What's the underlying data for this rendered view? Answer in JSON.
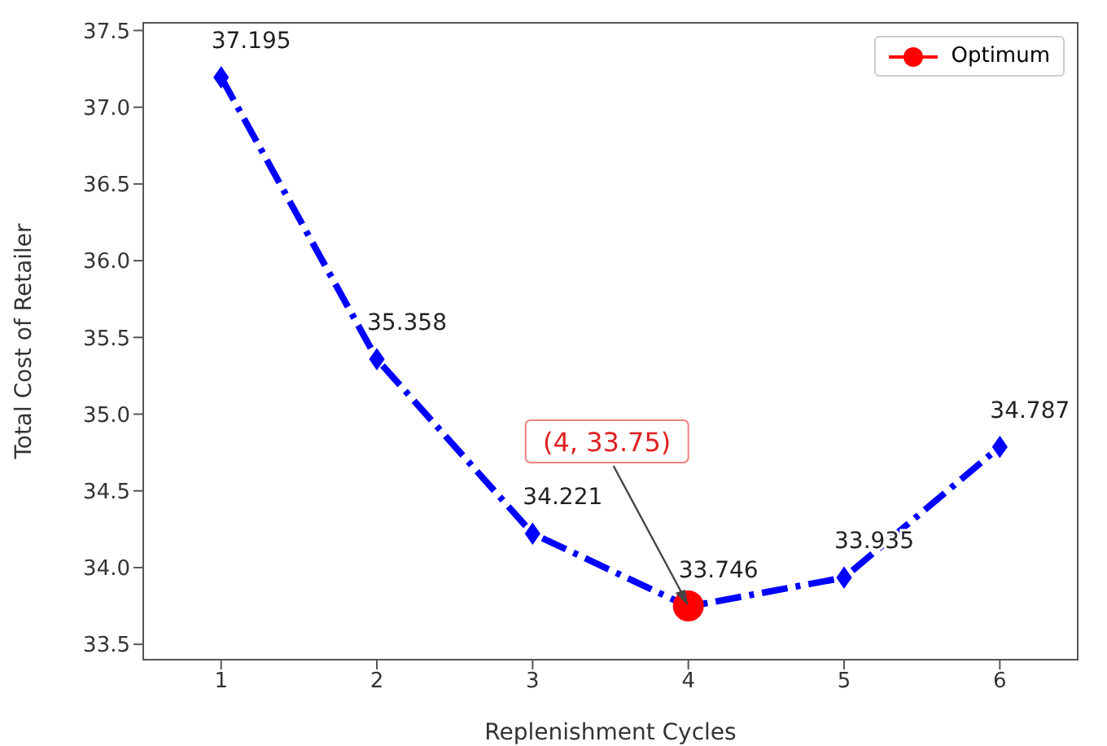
{
  "chart_data": {
    "type": "line",
    "xlabel": "Replenishment Cycles",
    "ylabel": "Total Cost of Retailer",
    "x": [
      1,
      2,
      3,
      4,
      5,
      6
    ],
    "series": [
      {
        "color": "#0000ff",
        "values": [
          37.195,
          35.358,
          34.221,
          33.746,
          33.935,
          34.787
        ],
        "value_labels": [
          "37.195",
          "35.358",
          "34.221",
          "33.746",
          "33.935",
          "34.787"
        ],
        "marker": "diamond",
        "line_style": "dashed"
      },
      {
        "name": "Optimum",
        "color": "#ff0000",
        "x": [
          4
        ],
        "values": [
          33.75
        ],
        "marker": "circle",
        "line_style": "solid"
      }
    ],
    "annotations": [
      {
        "text": "(4, 33.75)",
        "x": 4,
        "y": 33.75
      }
    ],
    "xlim": [
      0.5,
      6.5
    ],
    "xticks": [
      1,
      2,
      3,
      4,
      5,
      6
    ],
    "ylim": [
      33.4,
      37.55
    ],
    "yticks": [
      33.5,
      {
        "value": 34,
        "label": "34.0"
      },
      34.5,
      {
        "value": 35,
        "label": "35.0"
      },
      35.5,
      {
        "value": 36,
        "label": "36.0"
      },
      36.5,
      {
        "value": 37,
        "label": "37.0"
      },
      37.5
    ],
    "grid": false,
    "legend": "top right"
  }
}
